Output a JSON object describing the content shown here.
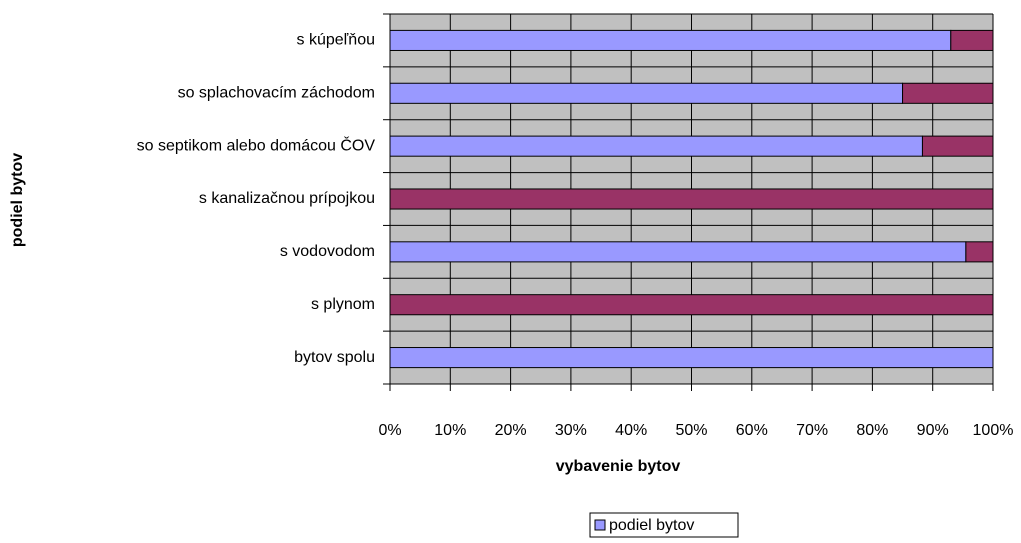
{
  "chart_data": {
    "type": "stacked-barh",
    "categories": [
      "s kúpeľňou",
      "so splachovacím záchodom",
      "so septikom alebo domácou ČOV",
      "s kanalizačnou prípojkou",
      "s vodovodom",
      "s plynom",
      "bytov spolu"
    ],
    "series": [
      {
        "name": "podiel bytov",
        "color": "#9999ff",
        "values": [
          93,
          85,
          88.3,
          0,
          95.5,
          0,
          100
        ]
      },
      {
        "color": "#993366",
        "values": [
          7,
          15,
          11.7,
          100,
          4.5,
          100,
          0
        ]
      }
    ],
    "xlim": [
      0,
      100
    ],
    "xticks": [
      {
        "value": 0,
        "label": "0%"
      },
      {
        "value": 10,
        "label": "10%"
      },
      {
        "value": 20,
        "label": "20%"
      },
      {
        "value": 30,
        "label": "30%"
      },
      {
        "value": 40,
        "label": "40%"
      },
      {
        "value": 50,
        "label": "50%"
      },
      {
        "value": 60,
        "label": "60%"
      },
      {
        "value": 70,
        "label": "70%"
      },
      {
        "value": 80,
        "label": "80%"
      },
      {
        "value": 90,
        "label": "90%"
      },
      {
        "value": 100,
        "label": "100%"
      }
    ],
    "x_label": "vybavenie bytov",
    "y_label": "podiel bytov",
    "grid": true,
    "plot_background": "#c0c0c0",
    "legend": "bottom"
  }
}
